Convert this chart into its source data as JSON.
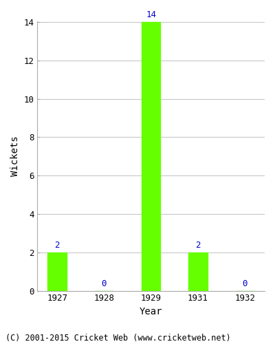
{
  "categories": [
    "1927",
    "1928",
    "1929",
    "1931",
    "1932"
  ],
  "values": [
    2,
    0,
    14,
    2,
    0
  ],
  "bar_color": "#66ff00",
  "title": "",
  "xlabel": "Year",
  "ylabel": "Wickets",
  "ylim": [
    0,
    14
  ],
  "yticks": [
    0,
    2,
    4,
    6,
    8,
    10,
    12,
    14
  ],
  "label_color": "#0000cc",
  "label_fontsize": 9,
  "axis_label_fontsize": 10,
  "tick_fontsize": 9,
  "background_color": "#ffffff",
  "grid_color": "#c8c8c8",
  "footer_text": "(C) 2001-2015 Cricket Web (www.cricketweb.net)",
  "footer_fontsize": 8.5,
  "bar_width": 0.4
}
